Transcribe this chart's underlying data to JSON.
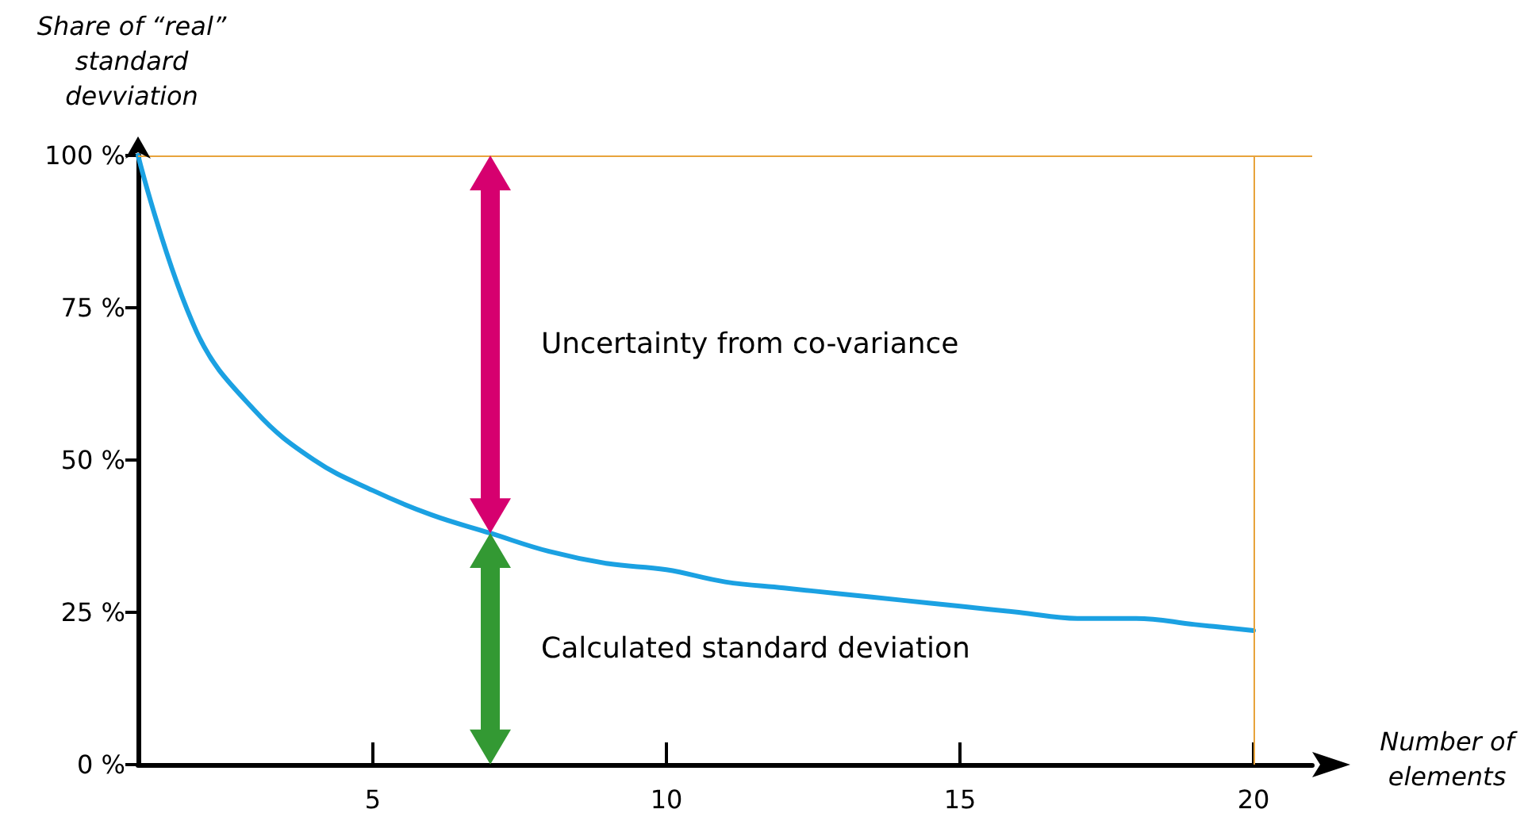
{
  "chart_data": {
    "type": "line",
    "xlabel": "Number of elements",
    "ylabel": "Share of “real” standard devviation",
    "x": [
      1,
      2,
      3,
      4,
      5,
      6,
      7,
      8,
      9,
      10,
      11,
      12,
      13,
      14,
      15,
      16,
      17,
      18,
      19,
      20
    ],
    "series": [
      {
        "color": "#1ba1e2",
        "values": [
          100,
          71,
          58,
          50,
          45,
          41,
          38,
          35,
          33,
          32,
          30,
          29,
          28,
          27,
          26,
          25,
          24,
          24,
          23,
          22
        ]
      }
    ],
    "xlim": [
      1,
      21
    ],
    "xticks": [
      5,
      10,
      15,
      20
    ],
    "ylim": [
      0,
      100
    ],
    "yticks": [
      {
        "value": 0,
        "label": "0 %"
      },
      {
        "value": 25,
        "label": "25 %"
      },
      {
        "value": 50,
        "label": "50 %"
      },
      {
        "value": 75,
        "label": "75 %"
      },
      {
        "value": 100,
        "label": "100 %"
      }
    ],
    "ref_lines": [
      {
        "axis": "y",
        "value": 100,
        "color": "#e8a33c"
      },
      {
        "axis": "x",
        "value": 20,
        "color": "#e8a33c"
      }
    ],
    "annotations": [
      "Uncertainty from co-variance",
      "Calculated standard deviation"
    ],
    "grid": false,
    "marker": "none",
    "line_style": "solid"
  }
}
